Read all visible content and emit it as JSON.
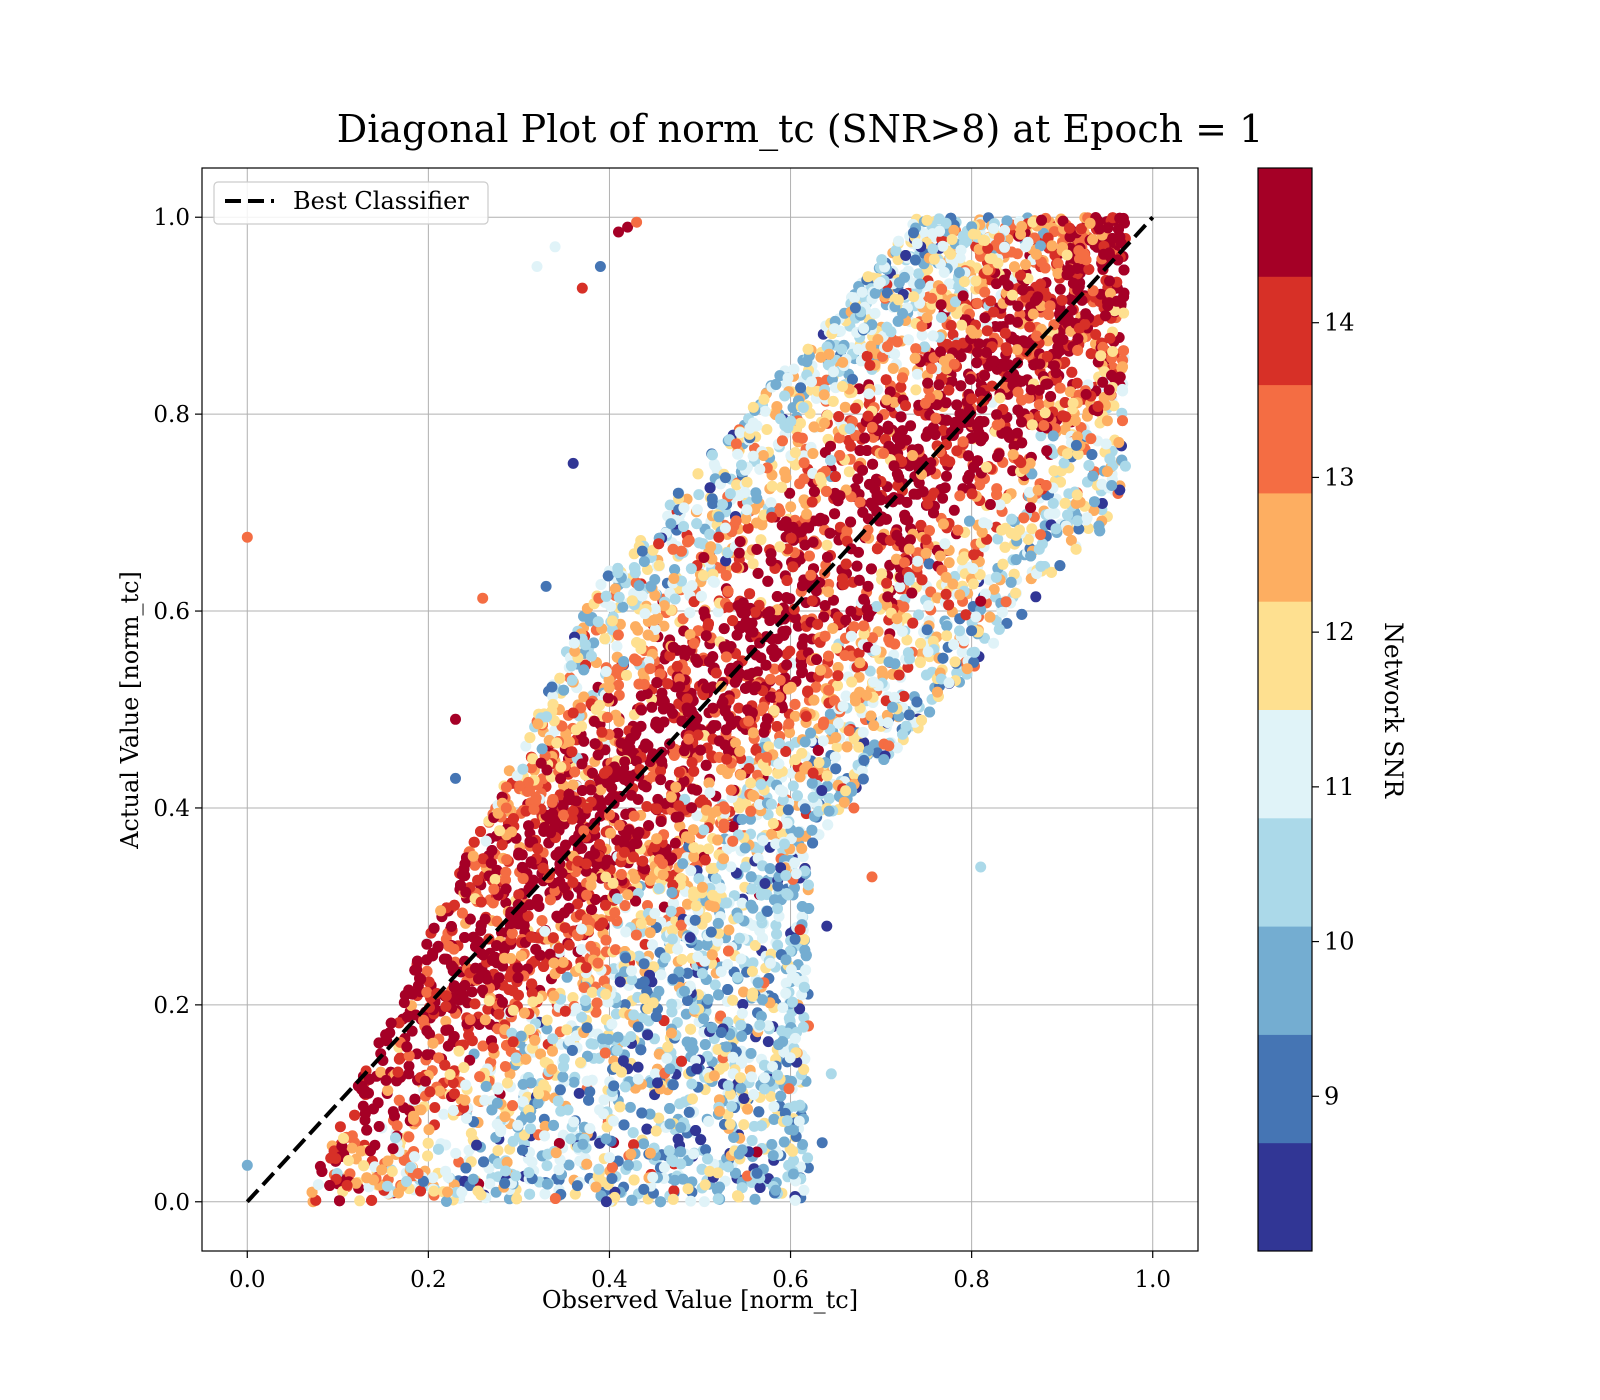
{
  "chart_data": {
    "type": "scatter",
    "title": "Diagonal Plot of norm_tc (SNR>8) at Epoch = 1",
    "xlabel": "Observed Value [norm_tc]",
    "ylabel": "Actual Value [norm_tc]",
    "xlim": [
      -0.05,
      1.05
    ],
    "ylim": [
      -0.05,
      1.05
    ],
    "xticks": [
      0.0,
      0.2,
      0.4,
      0.6,
      0.8,
      1.0
    ],
    "yticks": [
      0.0,
      0.2,
      0.4,
      0.6,
      0.8,
      1.0
    ],
    "x_tick_labels": [
      "0.0",
      "0.2",
      "0.4",
      "0.6",
      "0.8",
      "1.0"
    ],
    "y_tick_labels": [
      "0.0",
      "0.2",
      "0.4",
      "0.6",
      "0.8",
      "1.0"
    ],
    "grid": true,
    "legend": {
      "position": "top-left",
      "entries": [
        "Best Classifier"
      ]
    },
    "reference_line": {
      "name": "Best Classifier",
      "x": [
        0.0,
        1.0
      ],
      "y": [
        0.0,
        1.0
      ],
      "style": "dashed",
      "color": "#000000"
    },
    "colorbar": {
      "label": "Network SNR",
      "range": [
        8,
        15
      ],
      "ticks": [
        9,
        10,
        11,
        12,
        13,
        14
      ],
      "tick_labels": [
        "9",
        "10",
        "11",
        "12",
        "13",
        "14"
      ],
      "colors": [
        "#313695",
        "#4575b4",
        "#74add1",
        "#abd9e9",
        "#e0f3f8",
        "#fee090",
        "#fdae61",
        "#f46d43",
        "#d73027",
        "#a50026"
      ]
    },
    "sample_points": [
      {
        "x": 0.0,
        "y": 0.675,
        "snr": 13.4
      },
      {
        "x": 0.0,
        "y": 0.037,
        "snr": 9.9
      },
      {
        "x": 0.26,
        "y": 0.613,
        "snr": 13.4
      },
      {
        "x": 0.23,
        "y": 0.49,
        "snr": 14.8
      },
      {
        "x": 0.23,
        "y": 0.43,
        "snr": 9.3
      },
      {
        "x": 0.37,
        "y": 0.928,
        "snr": 14.2
      },
      {
        "x": 0.39,
        "y": 0.95,
        "snr": 9.3
      },
      {
        "x": 0.36,
        "y": 0.75,
        "snr": 8.7
      },
      {
        "x": 0.33,
        "y": 0.625,
        "snr": 9.3
      },
      {
        "x": 0.34,
        "y": 0.97,
        "snr": 11.4
      },
      {
        "x": 0.32,
        "y": 0.95,
        "snr": 11.4
      },
      {
        "x": 0.81,
        "y": 0.34,
        "snr": 10.5
      },
      {
        "x": 0.69,
        "y": 0.33,
        "snr": 13.4
      },
      {
        "x": 0.67,
        "y": 0.4,
        "snr": 13.4
      },
      {
        "x": 0.64,
        "y": 0.28,
        "snr": 8.7
      },
      {
        "x": 0.635,
        "y": 0.06,
        "snr": 9.3
      },
      {
        "x": 0.645,
        "y": 0.13,
        "snr": 10.5
      },
      {
        "x": 0.8,
        "y": 0.58,
        "snr": 9.3
      },
      {
        "x": 0.81,
        "y": 0.61,
        "snr": 14.8
      },
      {
        "x": 0.75,
        "y": 0.535,
        "snr": 10.5
      },
      {
        "x": 0.775,
        "y": 0.527,
        "snr": 11.4
      },
      {
        "x": 0.42,
        "y": 0.99,
        "snr": 14.8
      },
      {
        "x": 0.41,
        "y": 0.985,
        "snr": 14.8
      },
      {
        "x": 0.43,
        "y": 0.995,
        "snr": 13.4
      }
    ]
  }
}
